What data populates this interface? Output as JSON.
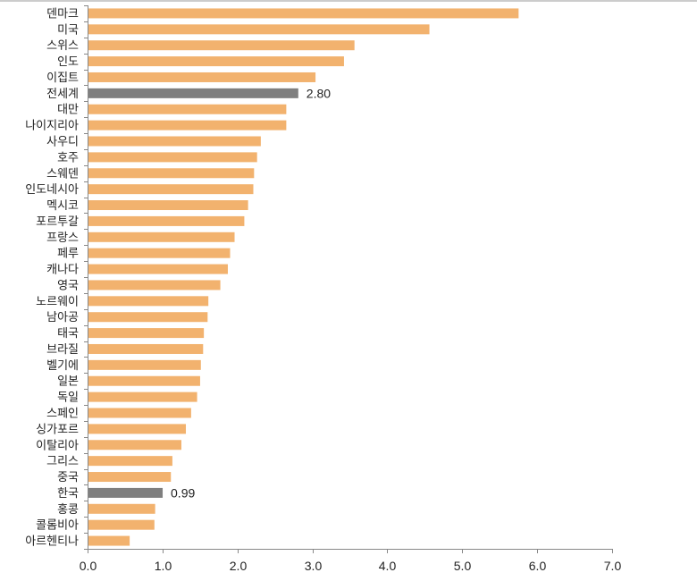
{
  "chart_data": {
    "type": "bar",
    "orientation": "horizontal",
    "title": "",
    "xlabel": "",
    "ylabel": "",
    "xlim": [
      0,
      7
    ],
    "xticks": [
      "0.0",
      "1.0",
      "2.0",
      "3.0",
      "4.0",
      "5.0",
      "6.0",
      "7.0"
    ],
    "categories": [
      "덴마크",
      "미국",
      "스위스",
      "인도",
      "이집트",
      "전세계",
      "대만",
      "나이지리아",
      "사우디",
      "호주",
      "스웨덴",
      "인도네시아",
      "멕시코",
      "포르투갈",
      "프랑스",
      "페루",
      "캐나다",
      "영국",
      "노르웨이",
      "남아공",
      "태국",
      "브라질",
      "벨기에",
      "일본",
      "독일",
      "스페인",
      "싱가포르",
      "이탈리아",
      "그리스",
      "중국",
      "한국",
      "홍콩",
      "콜롬비아",
      "아르헨티나"
    ],
    "values": [
      5.74,
      4.55,
      3.55,
      3.41,
      3.03,
      2.8,
      2.64,
      2.64,
      2.3,
      2.25,
      2.21,
      2.2,
      2.13,
      2.08,
      1.95,
      1.89,
      1.86,
      1.76,
      1.6,
      1.59,
      1.54,
      1.53,
      1.5,
      1.49,
      1.45,
      1.37,
      1.3,
      1.24,
      1.12,
      1.1,
      0.99,
      0.89,
      0.88,
      0.55
    ],
    "highlighted": [
      "전세계",
      "한국"
    ],
    "data_labels": [
      {
        "category": "전세계",
        "text": "2.80"
      },
      {
        "category": "한국",
        "text": "0.99"
      }
    ],
    "colors": {
      "bar": "#F2B26E",
      "highlight": "#7F7F7F",
      "axis": "#888888"
    }
  }
}
